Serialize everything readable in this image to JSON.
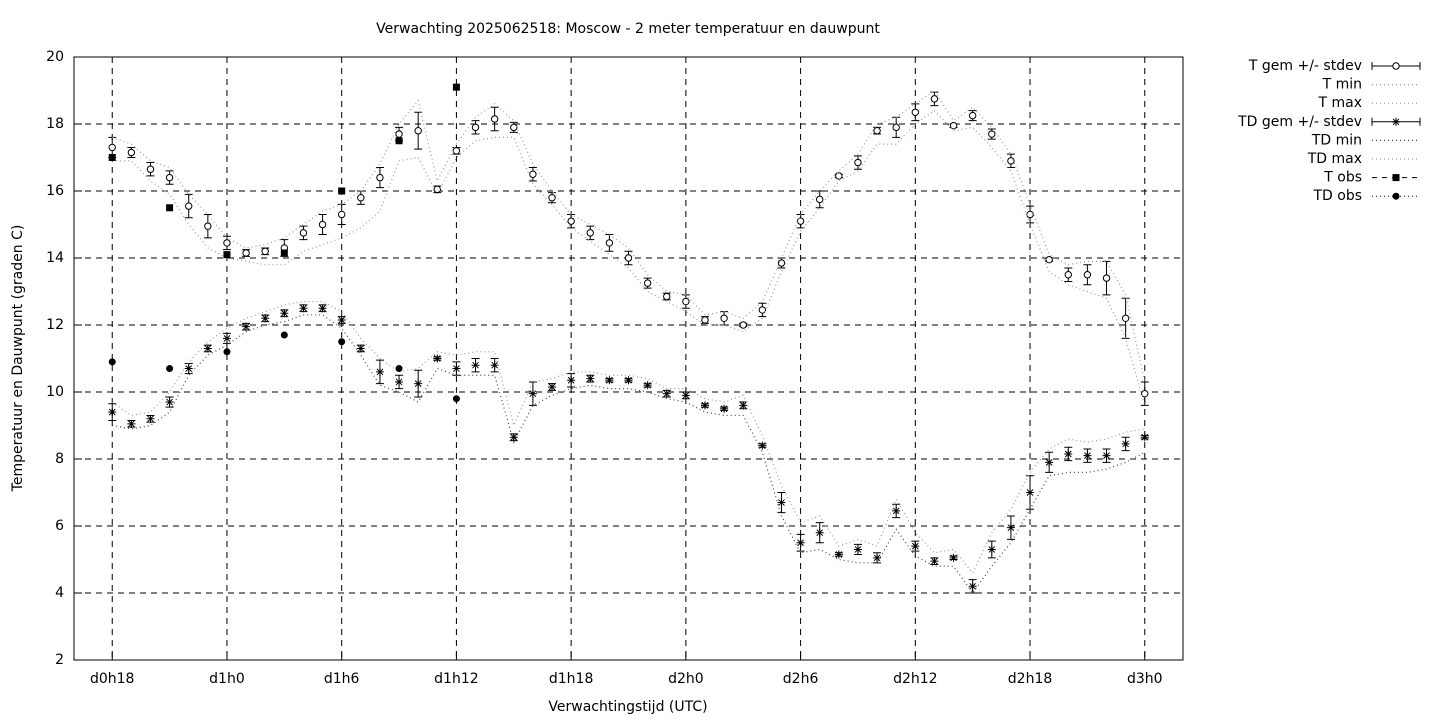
{
  "chart_data": {
    "type": "errorbar",
    "title": "Verwachting 2025062518: Moscow - 2 meter temperatuur en dauwpunt",
    "x_label": "Verwachtingstijd (UTC)",
    "y_label": "Temperatuur en Dauwpunt (graden C)",
    "xlim": [
      -2,
      56
    ],
    "xticks": [
      {
        "value": 0,
        "label": "d0h18"
      },
      {
        "value": 6,
        "label": "d1h0"
      },
      {
        "value": 12,
        "label": "d1h6"
      },
      {
        "value": 18,
        "label": "d1h12"
      },
      {
        "value": 24,
        "label": "d1h18"
      },
      {
        "value": 30,
        "label": "d2h0"
      },
      {
        "value": 36,
        "label": "d2h6"
      },
      {
        "value": 42,
        "label": "d2h12"
      },
      {
        "value": 48,
        "label": "d2h18"
      },
      {
        "value": 54,
        "label": "d3h0"
      }
    ],
    "ylim": [
      2,
      20
    ],
    "yticks": [
      2,
      4,
      6,
      8,
      10,
      12,
      14,
      16,
      18,
      20
    ],
    "grid": true,
    "legend": "outside-top-right",
    "x": [
      0,
      1,
      2,
      3,
      4,
      5,
      6,
      7,
      8,
      9,
      10,
      11,
      12,
      13,
      14,
      15,
      16,
      17,
      18,
      19,
      20,
      21,
      22,
      23,
      24,
      25,
      26,
      27,
      28,
      29,
      30,
      31,
      32,
      33,
      34,
      35,
      36,
      37,
      38,
      39,
      40,
      41,
      42,
      43,
      44,
      45,
      46,
      47,
      48,
      49,
      50,
      51,
      52,
      53,
      54
    ],
    "series": [
      {
        "name": "T gem +/- stdev",
        "style": "errorbars",
        "marker": "circle",
        "color": "#000000",
        "values": [
          17.3,
          17.15,
          16.65,
          16.4,
          15.55,
          14.95,
          14.45,
          14.15,
          14.2,
          14.3,
          14.75,
          15.0,
          15.3,
          15.8,
          16.4,
          17.7,
          17.8,
          16.05,
          17.2,
          17.9,
          18.15,
          17.9,
          16.5,
          15.8,
          15.1,
          14.75,
          14.45,
          14.0,
          13.25,
          12.85,
          12.7,
          12.15,
          12.2,
          12.0,
          12.45,
          13.85,
          15.1,
          15.75,
          16.45,
          16.85,
          17.8,
          17.9,
          18.35,
          18.75,
          17.95,
          18.25,
          17.7,
          16.9,
          15.3,
          13.95,
          13.5,
          13.5,
          13.4,
          12.2,
          9.95
        ],
        "errors": [
          0.3,
          0.15,
          0.2,
          0.2,
          0.35,
          0.35,
          0.2,
          0.1,
          0.1,
          0.25,
          0.2,
          0.3,
          0.3,
          0.2,
          0.3,
          0.2,
          0.55,
          0.1,
          0.1,
          0.2,
          0.35,
          0.15,
          0.2,
          0.15,
          0.2,
          0.2,
          0.25,
          0.2,
          0.15,
          0.1,
          0.2,
          0.1,
          0.2,
          0.05,
          0.2,
          0.15,
          0.2,
          0.25,
          0.05,
          0.2,
          0.1,
          0.3,
          0.25,
          0.2,
          0.05,
          0.15,
          0.15,
          0.2,
          0.25,
          0.05,
          0.2,
          0.3,
          0.5,
          0.6,
          0.35
        ]
      },
      {
        "name": "T min",
        "style": "lines",
        "color": "#999999",
        "values": [
          16.9,
          16.9,
          16.3,
          15.9,
          15.0,
          14.3,
          14.0,
          13.9,
          13.8,
          13.8,
          14.2,
          14.4,
          14.6,
          14.9,
          15.4,
          16.9,
          17.0,
          15.9,
          17.0,
          17.5,
          17.6,
          17.6,
          16.2,
          15.6,
          14.9,
          14.5,
          14.1,
          13.7,
          13.0,
          12.7,
          12.4,
          12.0,
          12.0,
          11.8,
          12.2,
          13.6,
          14.8,
          15.5,
          16.3,
          16.6,
          17.4,
          17.4,
          18.0,
          18.4,
          17.8,
          17.9,
          17.3,
          16.6,
          15.0,
          13.6,
          13.2,
          13.0,
          12.8,
          11.6,
          9.6
        ]
      },
      {
        "name": "T max",
        "style": "lines",
        "color": "#999999",
        "values": [
          17.6,
          17.4,
          16.9,
          16.7,
          15.9,
          15.3,
          14.6,
          14.3,
          14.4,
          14.6,
          15.0,
          15.4,
          15.6,
          16.0,
          16.8,
          18.0,
          18.7,
          16.3,
          17.4,
          18.2,
          18.6,
          18.1,
          16.8,
          16.0,
          15.3,
          15.0,
          14.7,
          14.3,
          13.5,
          13.0,
          12.9,
          12.3,
          12.4,
          12.2,
          12.7,
          14.0,
          15.3,
          16.0,
          16.6,
          17.1,
          18.0,
          18.2,
          18.6,
          19.0,
          18.1,
          18.5,
          17.9,
          17.1,
          15.6,
          14.1,
          13.8,
          13.9,
          13.9,
          12.9,
          10.3
        ]
      },
      {
        "name": "TD gem +/- stdev",
        "style": "errorbars",
        "marker": "star",
        "color": "#000000",
        "values": [
          9.4,
          9.05,
          9.2,
          9.7,
          10.7,
          11.3,
          11.6,
          11.95,
          12.2,
          12.35,
          12.5,
          12.5,
          12.15,
          11.3,
          10.6,
          10.3,
          10.25,
          11.0,
          10.7,
          10.8,
          10.8,
          8.65,
          9.95,
          10.15,
          10.35,
          10.4,
          10.35,
          10.35,
          10.2,
          9.95,
          9.9,
          9.6,
          9.5,
          9.6,
          8.4,
          6.7,
          5.5,
          5.8,
          5.15,
          5.3,
          5.05,
          6.45,
          5.4,
          4.95,
          5.05,
          4.2,
          5.3,
          5.95,
          7.0,
          7.9,
          8.15,
          8.1,
          8.1,
          8.45,
          8.65
        ],
        "errors": [
          0.25,
          0.1,
          0.1,
          0.15,
          0.15,
          0.1,
          0.15,
          0.1,
          0.1,
          0.1,
          0.1,
          0.1,
          0.1,
          0.1,
          0.35,
          0.2,
          0.4,
          0.05,
          0.2,
          0.2,
          0.2,
          0.1,
          0.35,
          0.1,
          0.2,
          0.1,
          0.05,
          0.05,
          0.05,
          0.1,
          0.1,
          0.05,
          0.05,
          0.1,
          0.05,
          0.3,
          0.25,
          0.3,
          0.05,
          0.15,
          0.15,
          0.2,
          0.15,
          0.1,
          0.05,
          0.2,
          0.25,
          0.35,
          0.5,
          0.3,
          0.2,
          0.2,
          0.2,
          0.2,
          0.05
        ]
      },
      {
        "name": "TD min",
        "style": "lines",
        "color": "#444444",
        "values": [
          9.0,
          8.9,
          9.0,
          9.4,
          10.5,
          11.1,
          11.4,
          11.8,
          12.0,
          12.1,
          12.3,
          12.3,
          11.9,
          11.1,
          10.2,
          10.0,
          9.7,
          10.7,
          10.5,
          10.5,
          10.5,
          8.5,
          9.6,
          9.9,
          10.1,
          10.2,
          10.1,
          10.1,
          10.0,
          9.8,
          9.7,
          9.4,
          9.3,
          9.3,
          8.2,
          6.3,
          5.2,
          5.3,
          5.0,
          4.9,
          4.9,
          5.9,
          5.1,
          4.8,
          4.8,
          4.0,
          4.8,
          5.5,
          6.5,
          7.5,
          7.6,
          7.6,
          7.7,
          7.9,
          8.2
        ]
      },
      {
        "name": "TD max",
        "style": "lines",
        "color": "#999999",
        "values": [
          9.7,
          9.3,
          9.4,
          10.0,
          10.9,
          11.5,
          11.9,
          12.2,
          12.4,
          12.6,
          12.7,
          12.7,
          12.4,
          11.6,
          11.0,
          10.6,
          10.7,
          11.2,
          11.1,
          11.2,
          11.2,
          9.0,
          10.3,
          10.4,
          10.6,
          10.6,
          10.5,
          10.5,
          10.4,
          10.1,
          10.1,
          9.8,
          9.7,
          9.9,
          8.7,
          7.2,
          6.1,
          6.3,
          5.4,
          5.6,
          5.4,
          6.8,
          5.8,
          5.2,
          5.3,
          4.6,
          5.8,
          6.5,
          7.6,
          8.3,
          8.6,
          8.5,
          8.6,
          8.8,
          8.9
        ]
      },
      {
        "name": "T obs",
        "style": "points",
        "marker": "square",
        "color": "#000000",
        "x": [
          0,
          3,
          6,
          9,
          12,
          15,
          18
        ],
        "values": [
          17.0,
          15.5,
          14.1,
          14.15,
          16.0,
          17.5,
          19.1
        ]
      },
      {
        "name": "TD obs",
        "style": "points",
        "marker": "dot",
        "color": "#000000",
        "x": [
          0,
          3,
          6,
          9,
          12,
          15,
          18
        ],
        "values": [
          10.9,
          10.7,
          11.2,
          11.7,
          11.5,
          10.7,
          9.8
        ]
      }
    ]
  }
}
